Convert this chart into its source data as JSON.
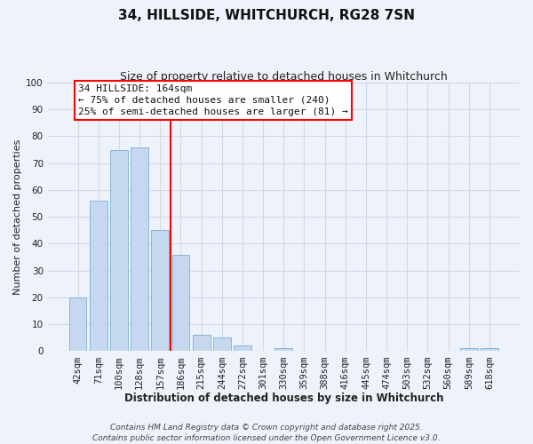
{
  "title": "34, HILLSIDE, WHITCHURCH, RG28 7SN",
  "subtitle": "Size of property relative to detached houses in Whitchurch",
  "xlabel": "Distribution of detached houses by size in Whitchurch",
  "ylabel": "Number of detached properties",
  "bar_labels": [
    "42sqm",
    "71sqm",
    "100sqm",
    "128sqm",
    "157sqm",
    "186sqm",
    "215sqm",
    "244sqm",
    "272sqm",
    "301sqm",
    "330sqm",
    "359sqm",
    "388sqm",
    "416sqm",
    "445sqm",
    "474sqm",
    "503sqm",
    "532sqm",
    "560sqm",
    "589sqm",
    "618sqm"
  ],
  "bar_values": [
    20,
    56,
    75,
    76,
    45,
    36,
    6,
    5,
    2,
    0,
    1,
    0,
    0,
    0,
    0,
    0,
    0,
    0,
    0,
    1,
    1
  ],
  "bar_color": "#c5d8f0",
  "bar_edge_color": "#7bafd4",
  "grid_color": "#d0d8e8",
  "background_color": "#eef2fa",
  "ylim": [
    0,
    100
  ],
  "yticks": [
    0,
    10,
    20,
    30,
    40,
    50,
    60,
    70,
    80,
    90,
    100
  ],
  "vline_x": 4.5,
  "vline_color": "red",
  "annotation_title": "34 HILLSIDE: 164sqm",
  "annotation_line1": "← 75% of detached houses are smaller (240)",
  "annotation_line2": "25% of semi-detached houses are larger (81) →",
  "annotation_box_color": "white",
  "annotation_box_edge": "red",
  "footer_line1": "Contains HM Land Registry data © Crown copyright and database right 2025.",
  "footer_line2": "Contains public sector information licensed under the Open Government Licence v3.0.",
  "title_fontsize": 11,
  "subtitle_fontsize": 9,
  "xlabel_fontsize": 8.5,
  "ylabel_fontsize": 8,
  "tick_fontsize": 7.5,
  "annotation_fontsize": 8,
  "footer_fontsize": 6.5
}
